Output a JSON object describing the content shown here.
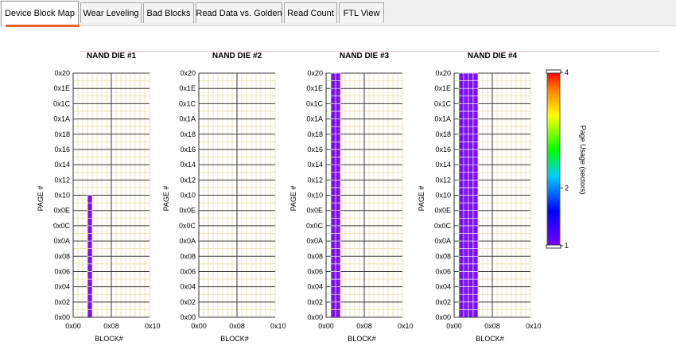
{
  "tabs": [
    {
      "label": "Device Block Map",
      "active": true
    },
    {
      "label": "Wear Leveling",
      "active": false
    },
    {
      "label": "Bad Blocks",
      "active": false
    },
    {
      "label": "Read Data vs. Golden",
      "active": false
    },
    {
      "label": "Read Count",
      "active": false
    },
    {
      "label": "FTL View",
      "active": false
    }
  ],
  "colors": {
    "accent": "#e8642b",
    "grid_minor": "#ece3b8",
    "grid_major": "#3a3a3a",
    "fill": "#7d10f0"
  },
  "chart_data": [
    {
      "type": "heatmap",
      "title": "NAND DIE #1",
      "xlabel": "BLOCK#",
      "ylabel": "PAGE #",
      "x_ticks": [
        "0x00",
        "0x08",
        "0x10"
      ],
      "y_ticks": [
        "0x00",
        "0x02",
        "0x04",
        "0x06",
        "0x08",
        "0x0A",
        "0x0C",
        "0x0E",
        "0x10",
        "0x12",
        "0x14",
        "0x16",
        "0x18",
        "0x1A",
        "0x1C",
        "0x1E",
        "0x20"
      ],
      "xlim": [
        0,
        16
      ],
      "ylim": [
        0,
        32
      ],
      "cells": [
        {
          "block": 3,
          "page_start": 0,
          "page_end": 16,
          "value": 1
        }
      ]
    },
    {
      "type": "heatmap",
      "title": "NAND DIE #2",
      "xlabel": "BLOCK#",
      "ylabel": "PAGE #",
      "x_ticks": [
        "0x00",
        "0x08",
        "0x10"
      ],
      "y_ticks": [
        "0x00",
        "0x02",
        "0x04",
        "0x06",
        "0x08",
        "0x0A",
        "0x0C",
        "0x0E",
        "0x10",
        "0x12",
        "0x14",
        "0x16",
        "0x18",
        "0x1A",
        "0x1C",
        "0x1E",
        "0x20"
      ],
      "xlim": [
        0,
        16
      ],
      "ylim": [
        0,
        32
      ],
      "cells": []
    },
    {
      "type": "heatmap",
      "title": "NAND DIE #3",
      "xlabel": "BLOCK#",
      "ylabel": "PAGE #",
      "x_ticks": [
        "0x00",
        "0x08",
        "0x10"
      ],
      "y_ticks": [
        "0x00",
        "0x02",
        "0x04",
        "0x06",
        "0x08",
        "0x0A",
        "0x0C",
        "0x0E",
        "0x10",
        "0x12",
        "0x14",
        "0x16",
        "0x18",
        "0x1A",
        "0x1C",
        "0x1E",
        "0x20"
      ],
      "xlim": [
        0,
        16
      ],
      "ylim": [
        0,
        32
      ],
      "cells": [
        {
          "block": 1,
          "page_start": 0,
          "page_end": 32,
          "value": 1
        },
        {
          "block": 2,
          "page_start": 0,
          "page_end": 32,
          "value": 1
        }
      ]
    },
    {
      "type": "heatmap",
      "title": "NAND DIE #4",
      "xlabel": "BLOCK#",
      "ylabel": "PAGE #",
      "x_ticks": [
        "0x00",
        "0x08",
        "0x10"
      ],
      "y_ticks": [
        "0x00",
        "0x02",
        "0x04",
        "0x06",
        "0x08",
        "0x0A",
        "0x0C",
        "0x0E",
        "0x10",
        "0x12",
        "0x14",
        "0x16",
        "0x18",
        "0x1A",
        "0x1C",
        "0x1E",
        "0x20"
      ],
      "xlim": [
        0,
        16
      ],
      "ylim": [
        0,
        32
      ],
      "cells": [
        {
          "block": 1,
          "page_start": 0,
          "page_end": 32,
          "value": 1
        },
        {
          "block": 2,
          "page_start": 0,
          "page_end": 32,
          "value": 1
        },
        {
          "block": 3,
          "page_start": 0,
          "page_end": 32,
          "value": 1
        },
        {
          "block": 4,
          "page_start": 0,
          "page_end": 32,
          "value": 1
        }
      ]
    }
  ],
  "colorbar": {
    "label": "Page Usage (sectors)",
    "ticks": [
      "4",
      "2",
      "1"
    ],
    "tick_values": [
      4,
      2,
      1
    ],
    "range": [
      1,
      4
    ]
  }
}
